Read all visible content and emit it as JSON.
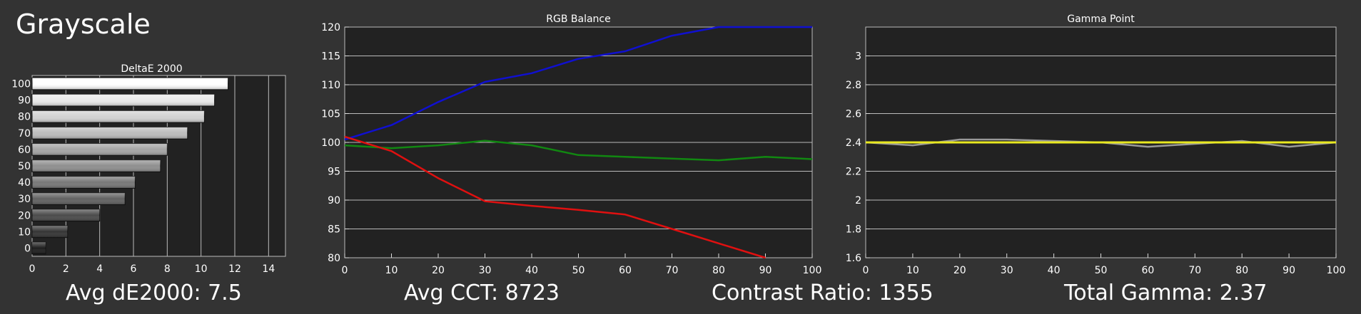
{
  "page_title": "Grayscale",
  "stats": {
    "avg_de": "Avg dE2000: 7.5",
    "avg_cct": "Avg CCT: 8723",
    "contrast": "Contrast Ratio: 1355",
    "gamma": "Total Gamma: 2.37"
  },
  "colors": {
    "background": "#333333",
    "plot_bg": "#222222",
    "grid": "#bbbbbb",
    "red": "#e01010",
    "green": "#118811",
    "blue": "#1010d0",
    "gamma_target": "#e8e820",
    "gamma_measured": "#999999"
  },
  "chart_data": [
    {
      "type": "bar",
      "orientation": "horizontal",
      "title": "DeltaE 2000",
      "categories": [
        "100",
        "90",
        "80",
        "70",
        "60",
        "50",
        "40",
        "30",
        "20",
        "10",
        "0"
      ],
      "values": [
        11.6,
        10.8,
        10.2,
        9.2,
        8.0,
        7.6,
        6.1,
        5.5,
        4.0,
        2.1,
        0.8
      ],
      "xlim": [
        0,
        15
      ],
      "xticks": [
        "0",
        "2",
        "4",
        "6",
        "8",
        "10",
        "12",
        "14"
      ],
      "grid": true
    },
    {
      "type": "line",
      "title": "RGB Balance",
      "x": [
        0,
        10,
        20,
        30,
        40,
        50,
        60,
        70,
        80,
        90,
        100
      ],
      "series": [
        {
          "color": "#1010d0",
          "values": [
            100.5,
            103.0,
            107.0,
            110.5,
            112.0,
            114.5,
            115.8,
            118.5,
            120.2,
            120.2,
            120.2
          ]
        },
        {
          "color": "#118811",
          "values": [
            99.5,
            99.0,
            99.5,
            100.3,
            99.5,
            97.8,
            97.5,
            97.2,
            96.9,
            97.5,
            97.1
          ]
        },
        {
          "color": "#e01010",
          "values": [
            101.0,
            98.5,
            93.8,
            89.8,
            89.0,
            88.3,
            87.5,
            85.0,
            82.5,
            80.0,
            null
          ]
        }
      ],
      "xlim": [
        0,
        100
      ],
      "ylim": [
        80,
        120
      ],
      "xticks": [
        "0",
        "10",
        "20",
        "30",
        "40",
        "50",
        "60",
        "70",
        "80",
        "90",
        "100"
      ],
      "yticks": [
        "80",
        "85",
        "90",
        "95",
        "100",
        "105",
        "110",
        "115",
        "120"
      ],
      "grid": true
    },
    {
      "type": "line",
      "title": "Gamma Point",
      "x": [
        0,
        10,
        20,
        30,
        40,
        50,
        60,
        70,
        80,
        90,
        100
      ],
      "series": [
        {
          "color": "#999999",
          "values": [
            2.4,
            2.38,
            2.42,
            2.42,
            2.41,
            2.4,
            2.37,
            2.39,
            2.41,
            2.37,
            2.4
          ]
        },
        {
          "color": "#e8e820",
          "values": [
            2.4,
            2.4,
            2.4,
            2.4,
            2.4,
            2.4,
            2.4,
            2.4,
            2.4,
            2.4,
            2.4
          ]
        }
      ],
      "xlim": [
        0,
        100
      ],
      "ylim": [
        1.6,
        3.2
      ],
      "xticks": [
        "0",
        "10",
        "20",
        "30",
        "40",
        "50",
        "60",
        "70",
        "80",
        "90",
        "100"
      ],
      "yticks": [
        "1.6",
        "1.8",
        "2",
        "2.2",
        "2.4",
        "2.6",
        "2.8",
        "3"
      ],
      "grid": true
    }
  ]
}
